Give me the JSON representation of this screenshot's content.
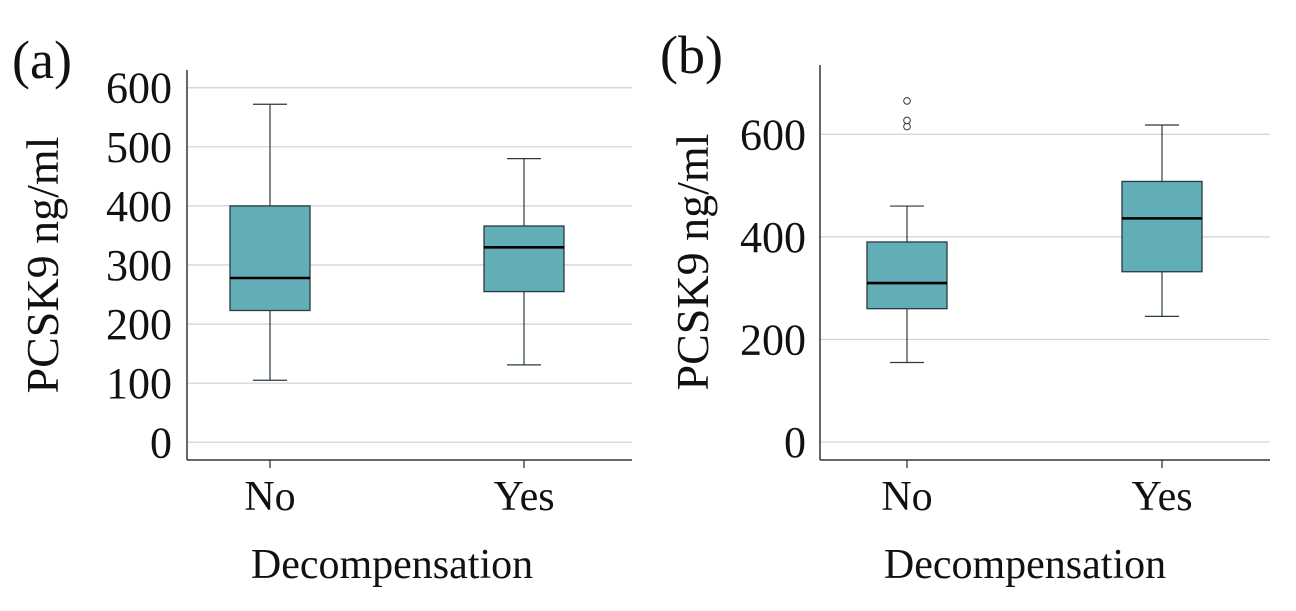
{
  "colors": {
    "box_fill": "#62aeb6",
    "box_stroke": "#2a3a40",
    "median": "#000000",
    "grid": "#d0d0d8",
    "axis": "#333340",
    "text": "#111111"
  },
  "chart_data": [
    {
      "panel": "(a)",
      "type": "boxplot",
      "xlabel": "Decompensation",
      "ylabel": "PCSK9 ng/ml",
      "ylim": [
        -30,
        630
      ],
      "yticks": [
        0,
        100,
        200,
        300,
        400,
        500,
        600
      ],
      "ytick_labels": [
        "0",
        "100",
        "200",
        "300",
        "400",
        "500",
        "600"
      ],
      "categories": [
        "No",
        "Yes"
      ],
      "boxes": [
        {
          "category": "No",
          "whisker_low": 105,
          "q1": 223,
          "median": 278,
          "q3": 400,
          "whisker_high": 572,
          "outliers": []
        },
        {
          "category": "Yes",
          "whisker_low": 131,
          "q1": 255,
          "median": 330,
          "q3": 366,
          "whisker_high": 480,
          "outliers": []
        }
      ]
    },
    {
      "panel": "(b)",
      "type": "boxplot",
      "xlabel": "Decompensation",
      "ylabel": "PCSK9 ng/ml",
      "ylim": [
        -35,
        735
      ],
      "yticks": [
        0,
        200,
        400,
        600
      ],
      "ytick_labels": [
        "0",
        "200",
        "400",
        "600"
      ],
      "categories": [
        "No",
        "Yes"
      ],
      "boxes": [
        {
          "category": "No",
          "whisker_low": 155,
          "q1": 260,
          "median": 310,
          "q3": 390,
          "whisker_high": 460,
          "outliers": [
            615,
            627,
            665
          ]
        },
        {
          "category": "Yes",
          "whisker_low": 245,
          "q1": 332,
          "median": 436,
          "q3": 508,
          "whisker_high": 618,
          "outliers": []
        }
      ]
    }
  ]
}
